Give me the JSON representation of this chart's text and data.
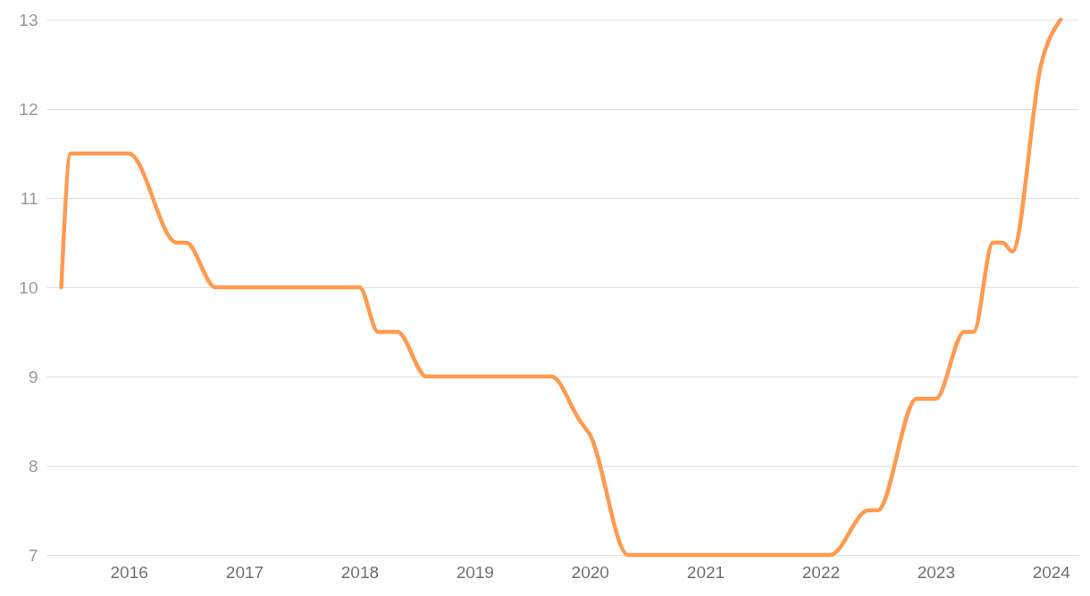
{
  "chart_data": {
    "type": "line",
    "x": [
      "2015-06",
      "2015-07",
      "2016-01",
      "2016-06",
      "2016-07",
      "2016-10",
      "2018-01",
      "2018-03",
      "2018-05",
      "2018-08",
      "2019-09",
      "2019-12",
      "2020-01",
      "2020-05",
      "2022-02",
      "2022-06",
      "2022-07",
      "2022-11",
      "2023-01",
      "2023-04",
      "2023-05",
      "2023-07",
      "2023-08",
      "2023-09",
      "2023-12",
      "2024-02"
    ],
    "series": [
      {
        "color": "#ff9a4f",
        "values": [
          10,
          11.5,
          11.5,
          10.5,
          10.5,
          10,
          10,
          9.5,
          9.5,
          9,
          9,
          8.5,
          8.35,
          7,
          7,
          7.5,
          7.5,
          8.75,
          8.75,
          9.5,
          9.5,
          10.5,
          10.5,
          10.4,
          12.5,
          13
        ]
      }
    ],
    "xlim": [
      "2015-04-15",
      "2024-03-28"
    ],
    "xticks": [
      "2016",
      "2017",
      "2018",
      "2019",
      "2020",
      "2021",
      "2022",
      "2023",
      "2024"
    ],
    "ylim": [
      7,
      13
    ],
    "yticks": [
      7,
      8,
      9,
      10,
      11,
      12,
      13
    ],
    "grid": "y",
    "marker": "none",
    "line_style": "solid"
  }
}
